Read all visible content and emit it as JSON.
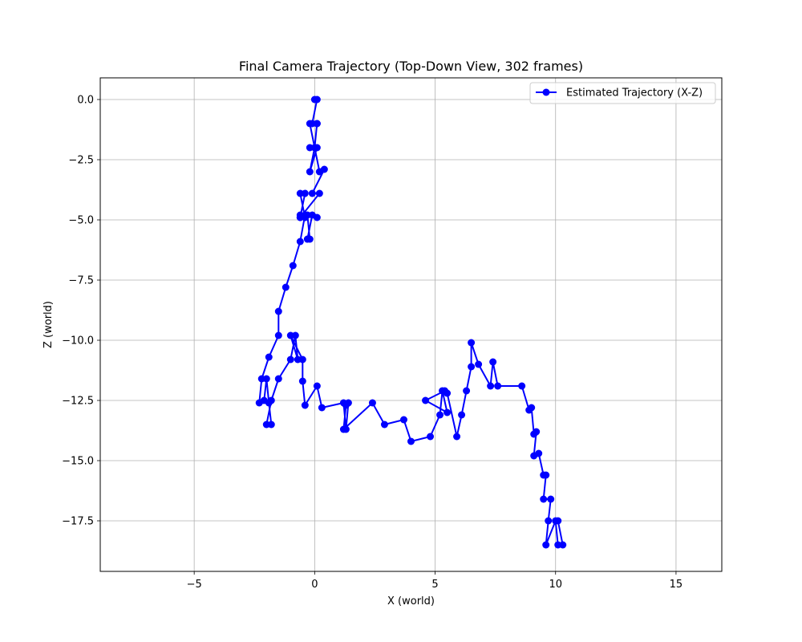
{
  "chart_data": {
    "type": "line",
    "title": "Final Camera Trajectory (Top-Down View, 302 frames)",
    "xlabel": "X (world)",
    "ylabel": "Z (world)",
    "xlim": [
      -8.9,
      16.9
    ],
    "ylim": [
      -19.6,
      0.9
    ],
    "xticks": [
      -5,
      0,
      5,
      10,
      15
    ],
    "yticks": [
      0.0,
      -2.5,
      -5.0,
      -7.5,
      -10.0,
      -12.5,
      -15.0,
      -17.5
    ],
    "xtick_labels": [
      "−5",
      "0",
      "5",
      "10",
      "15"
    ],
    "ytick_labels": [
      "0.0",
      "−2.5",
      "−5.0",
      "−7.5",
      "−10.0",
      "−12.5",
      "−15.0",
      "−17.5"
    ],
    "grid": true,
    "legend": "top-right",
    "series": [
      {
        "name": "Estimated Trajectory (X-Z)",
        "color": "#0000ff",
        "marker": "circle",
        "x": [
          0.0,
          0.1,
          -0.1,
          0.1,
          0.0,
          -0.2,
          0.1,
          -0.2,
          0.0,
          0.1,
          -0.2,
          0.2,
          0.4,
          -0.1,
          0.2,
          -0.6,
          -0.4,
          -0.6,
          -0.4,
          -0.6,
          0.1,
          -0.1,
          -0.3,
          -0.2,
          -0.3,
          -0.6,
          -0.4,
          -0.6,
          -0.9,
          -1.2,
          -1.5,
          -1.5,
          -1.9,
          -2.2,
          -2.3,
          -2.1,
          -2.0,
          -1.9,
          -1.8,
          -2.0,
          -1.8,
          -1.5,
          -1.0,
          -0.8,
          -0.7,
          -1.0,
          -0.5,
          -0.5,
          -0.4,
          0.1,
          0.3,
          1.2,
          1.3,
          1.4,
          1.3,
          1.2,
          2.4,
          2.9,
          3.7,
          4.0,
          4.8,
          5.2,
          5.3,
          5.5,
          4.6,
          5.4,
          5.5,
          5.9,
          6.1,
          6.3,
          6.5,
          6.5,
          6.8,
          7.3,
          7.4,
          7.6,
          8.6,
          8.9,
          9.0,
          9.1,
          9.2,
          9.1,
          9.3,
          9.5,
          9.6,
          9.5,
          9.8,
          9.7,
          9.6,
          10.0,
          10.1,
          10.3,
          10.1
        ],
        "y": [
          0.0,
          0.0,
          -1.0,
          -1.0,
          -2.0,
          -2.0,
          -2.0,
          -3.0,
          -2.0,
          -1.0,
          -1.0,
          -3.0,
          -2.9,
          -3.9,
          -3.9,
          -4.9,
          -3.9,
          -3.9,
          -4.9,
          -4.8,
          -4.9,
          -4.8,
          -5.8,
          -5.8,
          -4.8,
          -4.9,
          -4.8,
          -5.9,
          -6.9,
          -7.8,
          -8.8,
          -9.8,
          -10.7,
          -11.6,
          -12.6,
          -12.5,
          -11.6,
          -12.6,
          -13.5,
          -13.5,
          -12.5,
          -11.6,
          -10.8,
          -9.8,
          -10.8,
          -9.8,
          -10.8,
          -11.7,
          -12.7,
          -11.9,
          -12.8,
          -12.6,
          -13.7,
          -12.6,
          -12.7,
          -13.7,
          -12.6,
          -13.5,
          -13.3,
          -14.2,
          -14.0,
          -13.1,
          -12.1,
          -13.0,
          -12.5,
          -12.1,
          -12.2,
          -14.0,
          -13.1,
          -12.1,
          -11.1,
          -10.1,
          -11.0,
          -11.9,
          -10.9,
          -11.9,
          -11.9,
          -12.9,
          -12.8,
          -13.9,
          -13.8,
          -14.8,
          -14.7,
          -15.6,
          -15.6,
          -16.6,
          -16.6,
          -17.5,
          -18.5,
          -17.5,
          -18.5,
          -18.5,
          -17.5
        ]
      }
    ]
  }
}
